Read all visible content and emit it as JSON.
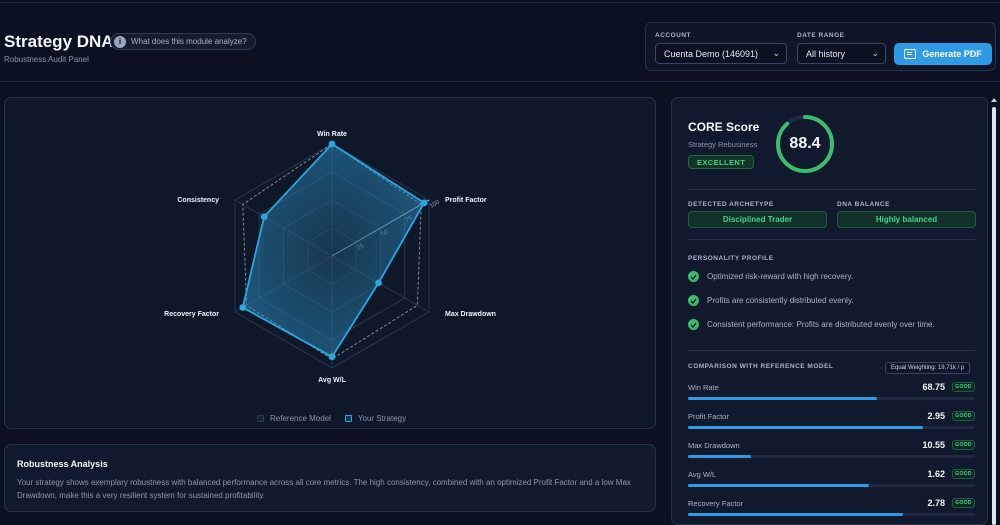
{
  "header": {
    "title": "Strategy DNA",
    "subtitle": "Robustness Audit Panel",
    "info_label": "What does this module analyze?",
    "info_icon": "info-icon"
  },
  "controls": {
    "account_label": "ACCOUNT",
    "account_value": "Cuenta Demo (146091)",
    "date_label": "DATE RANGE",
    "date_value": "All history",
    "pdf_label": "Generate PDF",
    "accent": "#2f9be6"
  },
  "radar": {
    "axes": [
      "Win Rate",
      "Profit Factor",
      "Max Drawdown",
      "Avg W/L",
      "Recovery Factor",
      "Consistency"
    ],
    "tick_labels": [
      "25",
      "50",
      "75",
      "100"
    ],
    "reference_values": [
      100,
      92,
      88,
      92,
      88,
      92
    ],
    "strategy_values": [
      100,
      95,
      48,
      90,
      92,
      70
    ],
    "legend": {
      "reference": "Reference Model",
      "strategy": "Your Strategy"
    },
    "colors": {
      "strategy": "#29a8e0",
      "reference": "#8a94a8"
    }
  },
  "analysis": {
    "title": "Robustness Analysis",
    "text": "Your strategy shows exemplary robustness with balanced performance across all core metrics. The high consistency, combined with an optimized Profit Factor and a low Max Drawdown, make this a very resilient system for sustained profitability."
  },
  "core": {
    "title": "CORE Score",
    "subtitle": "Strategy Rebusiness",
    "badge": "EXCELLENT",
    "score": "88.4",
    "score_fraction": 0.884,
    "ring_color": "#3cbd6d"
  },
  "archetype": {
    "label": "DETECTED ARCHETYPE",
    "value": "Disciplined Trader",
    "balance_label": "DNA BALANCE",
    "balance_value": "Highly balanced"
  },
  "personality": {
    "label": "PERSONALITY PROFILE",
    "traits": [
      "Optimized risk-reward with high recovery.",
      "Profits are consistently distributed evenly.",
      "Consistent performance: Profits are distributed evenly over time."
    ]
  },
  "comparison": {
    "label": "COMPARISON WITH REFERENCE MODEL",
    "weighting": "Equal Weighting: 19.71k / p",
    "metrics": [
      {
        "name": "Win Rate",
        "value": "68.75",
        "tag": "GOOD",
        "fill": 0.66
      },
      {
        "name": "Profit Factor",
        "value": "2.95",
        "tag": "GOOD",
        "fill": 0.82
      },
      {
        "name": "Max Drawdown",
        "value": "10.55",
        "tag": "GOOD",
        "fill": 0.22
      },
      {
        "name": "Avg W/L",
        "value": "1.62",
        "tag": "GOOD",
        "fill": 0.63
      },
      {
        "name": "Recovery Factor",
        "value": "2.78",
        "tag": "GOOD",
        "fill": 0.75
      }
    ]
  }
}
